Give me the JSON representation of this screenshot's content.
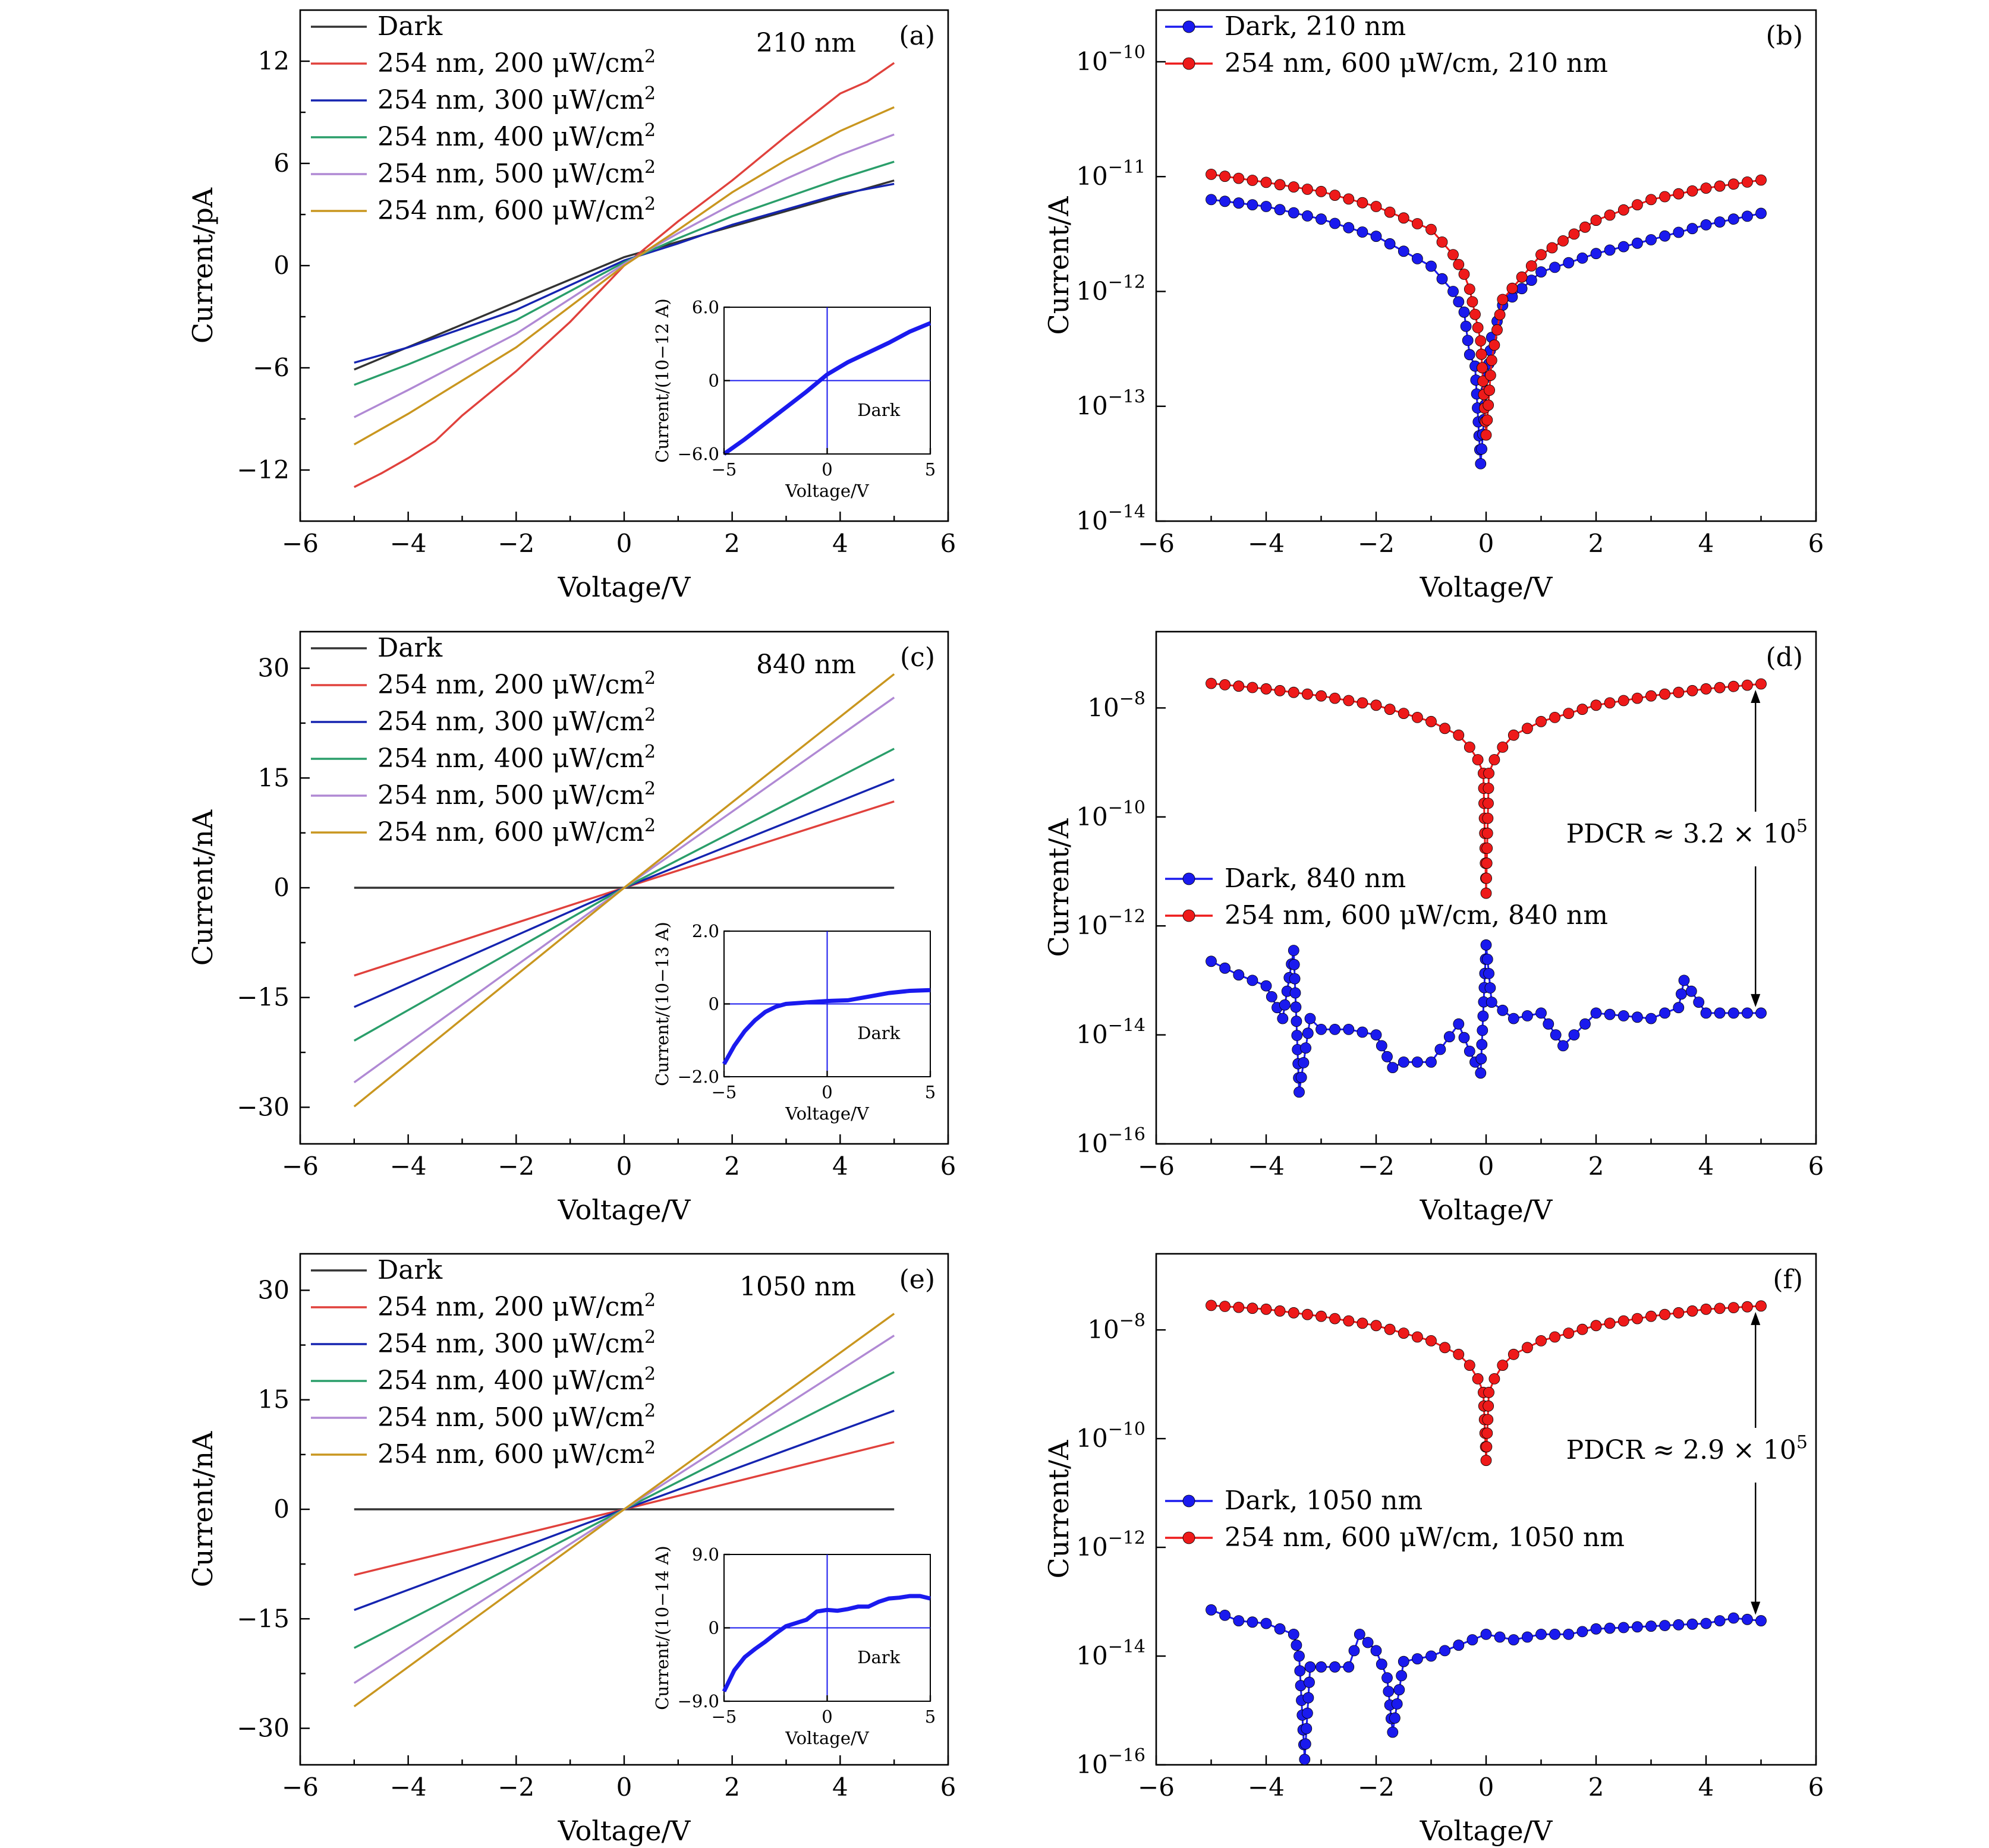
{
  "figure": {
    "colors": {
      "Dark": "#333333",
      "254 nm, 200 μW/cm2": "#e0413c",
      "254 nm, 300 μW/cm2": "#1524b0",
      "254 nm, 400 μW/cm2": "#2a9e6a",
      "254 nm, 500 μW/cm2": "#b089d4",
      "254 nm, 600 μW/cm2": "#c9961f",
      "dark_marker": "#1a1aee",
      "light_marker": "#ee1a1a"
    }
  },
  "chart_data": [
    {
      "panel": "(a)",
      "type": "line",
      "annotation": "210 nm",
      "xlabel": "Voltage/V",
      "ylabel": "Current/pA",
      "xlim": [
        -6,
        6
      ],
      "ylim": [
        -15,
        15
      ],
      "xticks": [
        -6,
        -4,
        -2,
        0,
        2,
        4,
        6
      ],
      "yticks": [
        -12,
        -6,
        0,
        6,
        12
      ],
      "legend": "top-left",
      "series": [
        {
          "name": "Dark",
          "x": [
            -5,
            0,
            5
          ],
          "y": [
            -6.1,
            0.5,
            5.0
          ]
        },
        {
          "name": "254 nm, 200 μW/cm2",
          "x": [
            -5,
            -4.5,
            -4,
            -3.5,
            -3,
            -2,
            -1,
            0,
            1,
            2,
            3,
            4,
            4.5,
            5
          ],
          "y": [
            -13.0,
            -12.2,
            -11.3,
            -10.3,
            -8.8,
            -6.2,
            -3.3,
            0,
            2.6,
            5.0,
            7.6,
            10.1,
            10.8,
            11.9
          ]
        },
        {
          "name": "254 nm, 300 μW/cm2",
          "x": [
            -5,
            -4,
            -2,
            0,
            1,
            2,
            3,
            4,
            5
          ],
          "y": [
            -5.7,
            -4.8,
            -2.6,
            0.3,
            1.3,
            2.4,
            3.3,
            4.2,
            4.8
          ]
        },
        {
          "name": "254 nm, 400 μW/cm2",
          "x": [
            -5,
            -4,
            -2,
            0,
            1,
            2,
            3,
            4,
            5
          ],
          "y": [
            -7.0,
            -5.8,
            -3.2,
            0.2,
            1.6,
            2.9,
            4.0,
            5.1,
            6.1
          ]
        },
        {
          "name": "254 nm, 500 μW/cm2",
          "x": [
            -5,
            -4,
            -2,
            0,
            1,
            2,
            3,
            4,
            5
          ],
          "y": [
            -8.9,
            -7.3,
            -4.0,
            0.1,
            1.9,
            3.6,
            5.1,
            6.5,
            7.7
          ]
        },
        {
          "name": "254 nm, 600 μW/cm2",
          "x": [
            -5,
            -4,
            -2,
            0,
            1,
            2,
            3,
            4,
            5
          ],
          "y": [
            -10.5,
            -8.7,
            -4.8,
            0.0,
            2.1,
            4.3,
            6.2,
            7.9,
            9.3
          ]
        }
      ],
      "inset": {
        "ylabel": "Current/(10−12 A)",
        "xlabel": "Voltage/V",
        "text": "Dark",
        "xlim": [
          -5,
          5
        ],
        "ylim": [
          -6.0,
          6.0
        ],
        "xticks": [
          -5,
          0,
          5
        ],
        "ytick_labels": [
          "6.0",
          "0",
          "−6.0"
        ],
        "x": [
          -5,
          -4,
          -3,
          -2,
          -1,
          0,
          1,
          2,
          3,
          4,
          5
        ],
        "y": [
          -6.0,
          -4.8,
          -3.5,
          -2.2,
          -0.9,
          0.5,
          1.5,
          2.3,
          3.1,
          4.0,
          4.7
        ]
      }
    },
    {
      "panel": "(b)",
      "type": "scatter",
      "xlabel": "Voltage/V",
      "ylabel": "Current/A",
      "xlim": [
        -6,
        6
      ],
      "ylim_log10": [
        -14,
        -9.55
      ],
      "yscale": "log",
      "xticks": [
        -6,
        -4,
        -2,
        0,
        2,
        4,
        6
      ],
      "yticks_exp": [
        -14,
        -13,
        -12,
        -11,
        -10
      ],
      "legend": "top-left",
      "series": [
        {
          "name": "Dark, 210 nm",
          "x": [
            -5,
            -4,
            -3,
            -2,
            -1,
            -0.6,
            -0.4,
            -0.3,
            -0.2,
            -0.1,
            0,
            0.1,
            0.3,
            1,
            2,
            3,
            4,
            5
          ],
          "y_log10": [
            -11.2,
            -11.26,
            -11.37,
            -11.52,
            -11.78,
            -12.0,
            -12.18,
            -12.55,
            -12.65,
            -13.5,
            -12.86,
            -12.4,
            -12.12,
            -11.83,
            -11.67,
            -11.55,
            -11.42,
            -11.32
          ]
        },
        {
          "name": "254 nm, 600 μW/cm, 210 nm",
          "x": [
            -5,
            -4,
            -3,
            -2,
            -1,
            -0.6,
            -0.4,
            -0.3,
            -0.2,
            -0.1,
            0,
            0.1,
            0.3,
            1,
            2,
            3,
            4,
            5
          ],
          "y_log10": [
            -10.98,
            -11.05,
            -11.13,
            -11.26,
            -11.46,
            -11.68,
            -11.85,
            -11.98,
            -12.2,
            -12.43,
            -13.25,
            -12.6,
            -12.07,
            -11.68,
            -11.38,
            -11.2,
            -11.1,
            -11.03
          ]
        }
      ]
    },
    {
      "panel": "(c)",
      "type": "line",
      "annotation": "840 nm",
      "xlabel": "Voltage/V",
      "ylabel": "Current/nA",
      "xlim": [
        -6,
        6
      ],
      "ylim": [
        -35,
        35
      ],
      "xticks": [
        -6,
        -4,
        -2,
        0,
        2,
        4,
        6
      ],
      "yticks": [
        -30,
        -15,
        0,
        15,
        30
      ],
      "legend": "top-left",
      "series": [
        {
          "name": "Dark",
          "x": [
            -5,
            5
          ],
          "y": [
            0,
            0
          ]
        },
        {
          "name": "254 nm, 200 μW/cm2",
          "x": [
            -5,
            0,
            5
          ],
          "y": [
            -12.0,
            0,
            11.8
          ]
        },
        {
          "name": "254 nm, 300 μW/cm2",
          "x": [
            -5,
            0,
            5
          ],
          "y": [
            -16.3,
            0,
            14.8
          ]
        },
        {
          "name": "254 nm, 400 μW/cm2",
          "x": [
            -5,
            0,
            5
          ],
          "y": [
            -20.9,
            0,
            19.0
          ]
        },
        {
          "name": "254 nm, 500 μW/cm2",
          "x": [
            -5,
            0,
            5
          ],
          "y": [
            -26.6,
            0,
            26.0
          ]
        },
        {
          "name": "254 nm, 600 μW/cm2",
          "x": [
            -5,
            0,
            5
          ],
          "y": [
            -29.9,
            0,
            29.2
          ]
        }
      ],
      "inset": {
        "ylabel": "Current/(10−13 A)",
        "xlabel": "Voltage/V",
        "text": "Dark",
        "xlim": [
          -5,
          5
        ],
        "ylim": [
          -2.0,
          2.0
        ],
        "xticks": [
          -5,
          0,
          5
        ],
        "ytick_labels": [
          "2.0",
          "0",
          "−2.0"
        ],
        "x": [
          -5,
          -4.5,
          -4,
          -3.5,
          -3,
          -2.5,
          -2,
          -1.5,
          -1,
          -0.5,
          0,
          1,
          2,
          3,
          4,
          5
        ],
        "y": [
          -1.65,
          -1.15,
          -0.75,
          -0.45,
          -0.22,
          -0.08,
          0.0,
          0.02,
          0.04,
          0.06,
          0.08,
          0.1,
          0.2,
          0.3,
          0.36,
          0.38
        ]
      }
    },
    {
      "panel": "(d)",
      "type": "scatter",
      "xlabel": "Voltage/V",
      "ylabel": "Current/A",
      "xlim": [
        -6,
        6
      ],
      "ylim_log10": [
        -16,
        -6.6
      ],
      "yscale": "log",
      "xticks": [
        -6,
        -4,
        -2,
        0,
        2,
        4,
        6
      ],
      "yticks_exp": [
        -16,
        -14,
        -12,
        -10,
        -8
      ],
      "legend": "center-left",
      "annotation": "PDCR ≈ 3.2 × 10⁵",
      "series": [
        {
          "name": "Dark, 840 nm",
          "x": [
            -5,
            -4.5,
            -4,
            -3.7,
            -3.5,
            -3.4,
            -3.2,
            -3,
            -2.5,
            -2,
            -1.7,
            -1.5,
            -1,
            -0.5,
            -0.3,
            -0.1,
            0,
            0.1,
            0.5,
            1,
            1.4,
            2,
            3,
            3.5,
            3.6,
            4,
            5
          ],
          "y_log10": [
            -12.65,
            -12.9,
            -13.1,
            -13.7,
            -12.45,
            -15.05,
            -13.7,
            -13.9,
            -13.9,
            -14.0,
            -14.6,
            -14.5,
            -14.5,
            -13.8,
            -14.3,
            -14.7,
            -12.35,
            -13.4,
            -13.7,
            -13.6,
            -14.2,
            -13.6,
            -13.7,
            -13.5,
            -13.0,
            -13.6,
            -13.6
          ]
        },
        {
          "name": "254 nm, 600 μW/cm, 840 nm",
          "x": [
            -5,
            -4,
            -3,
            -2,
            -1,
            -0.5,
            -0.3,
            -0.15,
            -0.05,
            0,
            0.05,
            0.15,
            0.3,
            0.5,
            1,
            2,
            3,
            4,
            5
          ],
          "y_log10": [
            -7.55,
            -7.65,
            -7.78,
            -7.95,
            -8.25,
            -8.5,
            -8.72,
            -8.95,
            -9.2,
            -11.4,
            -9.2,
            -8.95,
            -8.72,
            -8.5,
            -8.25,
            -7.95,
            -7.78,
            -7.65,
            -7.56
          ]
        }
      ]
    },
    {
      "panel": "(e)",
      "type": "line",
      "annotation": "1050 nm",
      "xlabel": "Voltage/V",
      "ylabel": "Current/nA",
      "xlim": [
        -6,
        6
      ],
      "ylim": [
        -35,
        35
      ],
      "xticks": [
        -6,
        -4,
        -2,
        0,
        2,
        4,
        6
      ],
      "yticks": [
        -30,
        -15,
        0,
        15,
        30
      ],
      "legend": "top-left",
      "series": [
        {
          "name": "Dark",
          "x": [
            -5,
            5
          ],
          "y": [
            0,
            0
          ]
        },
        {
          "name": "254 nm, 200 μW/cm2",
          "x": [
            -5,
            0,
            5
          ],
          "y": [
            -9.0,
            0,
            9.2
          ]
        },
        {
          "name": "254 nm, 300 μW/cm2",
          "x": [
            -5,
            0,
            5
          ],
          "y": [
            -13.8,
            0,
            13.5
          ]
        },
        {
          "name": "254 nm, 400 μW/cm2",
          "x": [
            -5,
            0,
            5
          ],
          "y": [
            -19.0,
            0,
            18.8
          ]
        },
        {
          "name": "254 nm, 500 μW/cm2",
          "x": [
            -5,
            0,
            5
          ],
          "y": [
            -23.8,
            0,
            23.8
          ]
        },
        {
          "name": "254 nm, 600 μW/cm2",
          "x": [
            -5,
            0,
            5
          ],
          "y": [
            -27.0,
            0,
            26.8
          ]
        }
      ],
      "inset": {
        "ylabel": "Current/(10−14 A)",
        "xlabel": "Voltage/V",
        "text": "Dark",
        "xlim": [
          -5,
          5
        ],
        "ylim": [
          -9.0,
          9.0
        ],
        "xticks": [
          -5,
          0,
          5
        ],
        "ytick_labels": [
          "9.0",
          "0",
          "−9.0"
        ],
        "x": [
          -5,
          -4.5,
          -4,
          -3.5,
          -3,
          -2.5,
          -2,
          -1.5,
          -1,
          -0.5,
          0,
          0.5,
          1,
          1.5,
          2,
          2.5,
          3,
          3.5,
          4,
          4.5,
          5
        ],
        "y": [
          -7.8,
          -5.2,
          -3.6,
          -2.6,
          -1.7,
          -0.7,
          0.2,
          0.6,
          1.0,
          2.0,
          2.2,
          2.1,
          2.3,
          2.6,
          2.6,
          3.2,
          3.6,
          3.7,
          3.9,
          3.9,
          3.6
        ]
      }
    },
    {
      "panel": "(f)",
      "type": "scatter",
      "xlabel": "Voltage/V",
      "ylabel": "Current/A",
      "xlim": [
        -6,
        6
      ],
      "ylim_log10": [
        -16,
        -6.6
      ],
      "yscale": "log",
      "xticks": [
        -6,
        -4,
        -2,
        0,
        2,
        4,
        6
      ],
      "yticks_exp": [
        -16,
        -14,
        -12,
        -10,
        -8
      ],
      "legend": "center-left",
      "annotation": "PDCR ≈ 2.9 × 10⁵",
      "series": [
        {
          "name": "Dark, 1050 nm",
          "x": [
            -5,
            -4.5,
            -4,
            -3.5,
            -3.4,
            -3.3,
            -3.2,
            -3,
            -2.5,
            -2.3,
            -2,
            -1.8,
            -1.7,
            -1.5,
            -1,
            -0.5,
            0,
            0.5,
            1,
            1.5,
            2,
            3,
            4,
            4.5,
            5
          ],
          "y_log10": [
            -13.15,
            -13.35,
            -13.4,
            -13.6,
            -14.0,
            -15.9,
            -14.2,
            -14.2,
            -14.2,
            -13.6,
            -13.9,
            -14.4,
            -15.4,
            -14.1,
            -14.0,
            -13.8,
            -13.6,
            -13.7,
            -13.6,
            -13.6,
            -13.5,
            -13.45,
            -13.4,
            -13.3,
            -13.35
          ]
        },
        {
          "name": "254 nm, 600 μW/cm, 1050 nm",
          "x": [
            -5,
            -4,
            -3,
            -2,
            -1,
            -0.5,
            -0.3,
            -0.15,
            -0.05,
            0,
            0.05,
            0.15,
            0.3,
            0.5,
            1,
            2,
            3,
            4,
            5
          ],
          "y_log10": [
            -7.55,
            -7.62,
            -7.75,
            -7.92,
            -8.2,
            -8.45,
            -8.65,
            -8.9,
            -9.15,
            -10.4,
            -9.15,
            -8.9,
            -8.65,
            -8.45,
            -8.2,
            -7.92,
            -7.75,
            -7.62,
            -7.56
          ]
        }
      ]
    }
  ]
}
